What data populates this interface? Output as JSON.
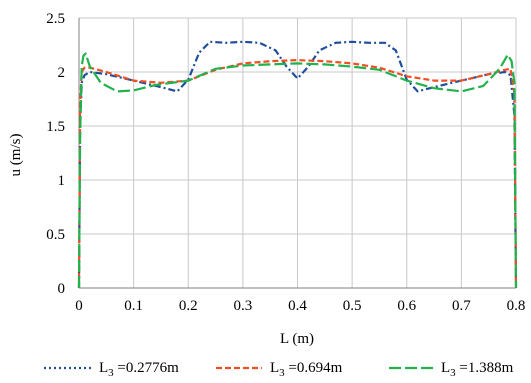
{
  "chart_data": {
    "type": "line",
    "title": "",
    "xlabel": "L (m)",
    "ylabel": "u (m/s)",
    "xlim": [
      0,
      0.8
    ],
    "ylim": [
      0,
      2.5
    ],
    "x_ticks": [
      "0",
      "0.1",
      "0.2",
      "0.3",
      "0.4",
      "0.5",
      "0.6",
      "0.7",
      "0.8"
    ],
    "y_ticks": [
      "0",
      "0.5",
      "1",
      "1.5",
      "2",
      "2.5"
    ],
    "grid": true,
    "legend_position": "bottom",
    "series": [
      {
        "name": "L3 =0.2776m",
        "legend": {
          "main": "L",
          "sub": "3",
          "rest": " =0.2776m"
        },
        "color": "#1f4e9c",
        "dash": "dash-dot",
        "x": [
          0.0,
          0.002,
          0.005,
          0.01,
          0.02,
          0.05,
          0.1,
          0.15,
          0.18,
          0.2,
          0.22,
          0.24,
          0.27,
          0.3,
          0.33,
          0.36,
          0.38,
          0.4,
          0.42,
          0.44,
          0.47,
          0.5,
          0.53,
          0.56,
          0.58,
          0.6,
          0.62,
          0.65,
          0.7,
          0.75,
          0.78,
          0.79,
          0.797,
          0.8
        ],
        "y": [
          0.0,
          1.5,
          1.9,
          1.97,
          2.0,
          1.98,
          1.92,
          1.86,
          1.82,
          1.93,
          2.18,
          2.28,
          2.27,
          2.28,
          2.27,
          2.2,
          2.05,
          1.94,
          2.05,
          2.2,
          2.27,
          2.28,
          2.27,
          2.27,
          2.2,
          1.93,
          1.82,
          1.86,
          1.92,
          1.98,
          2.0,
          1.97,
          1.6,
          0.0
        ]
      },
      {
        "name": "L3 =0.694m",
        "legend": {
          "main": "L",
          "sub": "3",
          "rest": " =0.694m"
        },
        "color": "#f04e23",
        "dash": "dashed",
        "x": [
          0.0,
          0.002,
          0.005,
          0.01,
          0.02,
          0.05,
          0.1,
          0.15,
          0.2,
          0.25,
          0.3,
          0.35,
          0.4,
          0.45,
          0.5,
          0.55,
          0.6,
          0.65,
          0.7,
          0.75,
          0.78,
          0.79,
          0.797,
          0.8
        ],
        "y": [
          0.0,
          1.7,
          2.0,
          2.04,
          2.04,
          2.0,
          1.92,
          1.9,
          1.92,
          2.02,
          2.08,
          2.1,
          2.11,
          2.1,
          2.08,
          2.04,
          1.96,
          1.92,
          1.92,
          1.98,
          2.02,
          2.03,
          1.8,
          0.0
        ]
      },
      {
        "name": "L3 =1.388m",
        "legend": {
          "main": "L",
          "sub": "3",
          "rest": " =1.388m"
        },
        "color": "#22b24c",
        "dash": "long-dash",
        "x": [
          0.0,
          0.002,
          0.005,
          0.008,
          0.012,
          0.02,
          0.04,
          0.07,
          0.1,
          0.14,
          0.2,
          0.25,
          0.3,
          0.35,
          0.4,
          0.45,
          0.5,
          0.55,
          0.6,
          0.65,
          0.7,
          0.74,
          0.77,
          0.785,
          0.792,
          0.797,
          0.8
        ],
        "y": [
          0.0,
          1.4,
          2.05,
          2.15,
          2.17,
          2.05,
          1.9,
          1.82,
          1.83,
          1.88,
          1.92,
          2.03,
          2.06,
          2.07,
          2.08,
          2.07,
          2.05,
          2.02,
          1.92,
          1.85,
          1.82,
          1.87,
          2.03,
          2.16,
          2.1,
          1.9,
          0.0
        ]
      }
    ]
  }
}
